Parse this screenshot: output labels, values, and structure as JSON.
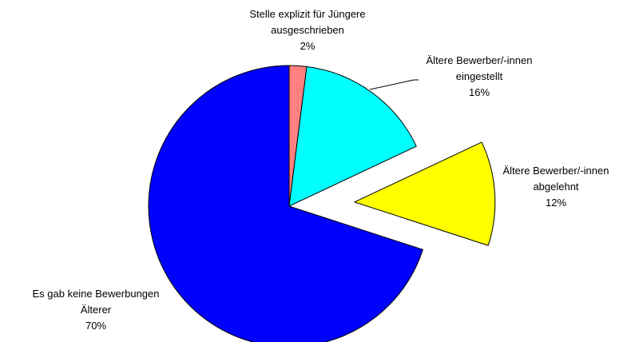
{
  "chart_data": {
    "type": "pie",
    "title": "",
    "slices": [
      {
        "label_lines": [
          "Stelle explizit für Jüngere",
          "ausgeschrieben"
        ],
        "pct_label": "2%",
        "value": 2,
        "color": "#ff8080",
        "exploded": false
      },
      {
        "label_lines": [
          "Ältere Bewerber/-innen",
          "eingestellt"
        ],
        "pct_label": "16%",
        "value": 16,
        "color": "#00ffff",
        "exploded": false
      },
      {
        "label_lines": [
          "Ältere Bewerber/-innen",
          "abgelehnt"
        ],
        "pct_label": "12%",
        "value": 12,
        "color": "#ffff00",
        "exploded": true
      },
      {
        "label_lines": [
          "Es gab keine Bewerbungen",
          "Älterer"
        ],
        "pct_label": "70%",
        "value": 70,
        "color": "#0000ff",
        "exploded": false
      }
    ]
  }
}
